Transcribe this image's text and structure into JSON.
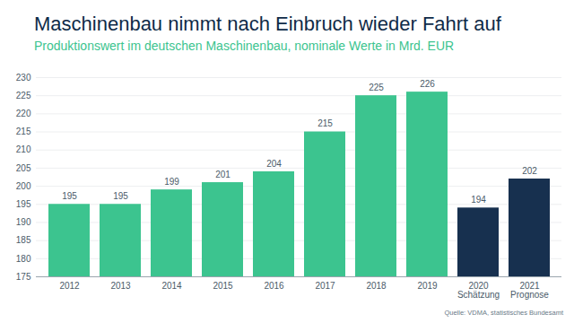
{
  "chart_data": {
    "type": "bar",
    "title": "Maschinenbau nimmt nach Einbruch wieder Fahrt auf",
    "subtitle": "Produktionswert im deutschen Maschinenbau, nominale Werte in Mrd. EUR",
    "source": "Quelle: VDMA, statistisches Bundesamt",
    "categories": [
      "2012",
      "2013",
      "2014",
      "2015",
      "2016",
      "2017",
      "2018",
      "2019",
      "2020\nSchätzung",
      "2021\nPrognose"
    ],
    "values": [
      195,
      195,
      199,
      201,
      204,
      215,
      225,
      226,
      194,
      202
    ],
    "colors": [
      "#3cc48f",
      "#3cc48f",
      "#3cc48f",
      "#3cc48f",
      "#3cc48f",
      "#3cc48f",
      "#3cc48f",
      "#3cc48f",
      "#17304f",
      "#17304f"
    ],
    "ylim": [
      175,
      230
    ],
    "yticks": [
      175,
      180,
      185,
      190,
      195,
      200,
      205,
      210,
      215,
      220,
      225,
      230
    ],
    "grid": true,
    "data_labels": true
  }
}
